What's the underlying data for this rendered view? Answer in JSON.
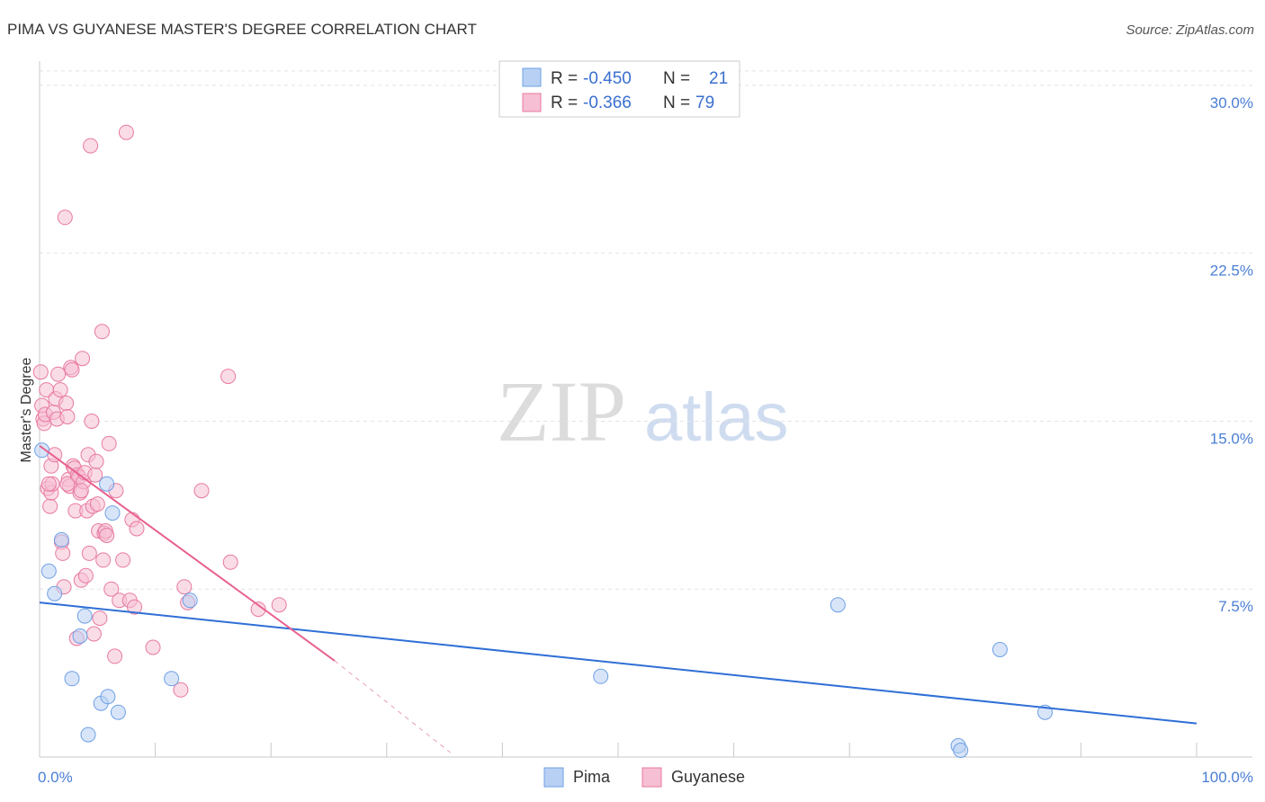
{
  "chart_data": {
    "type": "scatter",
    "title": "PIMA VS GUYANESE MASTER'S DEGREE CORRELATION CHART",
    "source": "Source: ZipAtlas.com",
    "xlabel": "",
    "ylabel": "Master's Degree",
    "xlim": [
      0,
      100
    ],
    "ylim": [
      0,
      31
    ],
    "x_ticks": [
      {
        "value": 0,
        "label": "0.0%"
      },
      {
        "value": 100,
        "label": "100.0%"
      }
    ],
    "y_ticks": [
      {
        "value": 7.5,
        "label": "7.5%"
      },
      {
        "value": 15,
        "label": "15.0%"
      },
      {
        "value": 22.5,
        "label": "22.5%"
      },
      {
        "value": 30,
        "label": "30.0%"
      }
    ],
    "watermark": {
      "part1": "ZIP",
      "part2": "atlas"
    },
    "legend": {
      "r_label": "R =",
      "n_label": "N =",
      "entries": [
        {
          "name": "Pima",
          "r": "-0.450",
          "n": "21"
        },
        {
          "name": "Guyanese",
          "r": "-0.366",
          "n": "79"
        }
      ]
    },
    "series": [
      {
        "name": "Pima",
        "color": "#6fa0e6",
        "fill": "#b8d0f3",
        "trend": {
          "x0": 0,
          "y0": 6.9,
          "x1": 100,
          "y1": 1.5
        },
        "points": [
          [
            0.2,
            13.7
          ],
          [
            0.8,
            8.3
          ],
          [
            1.3,
            7.3
          ],
          [
            1.9,
            9.7
          ],
          [
            2.8,
            3.5
          ],
          [
            3.5,
            5.4
          ],
          [
            3.9,
            6.3
          ],
          [
            4.2,
            1.0
          ],
          [
            5.3,
            2.4
          ],
          [
            5.9,
            2.7
          ],
          [
            6.8,
            2.0
          ],
          [
            6.3,
            10.9
          ],
          [
            11.4,
            3.5
          ],
          [
            13.0,
            7.0
          ],
          [
            48.5,
            3.6
          ],
          [
            69.0,
            6.8
          ],
          [
            83.0,
            4.8
          ],
          [
            86.9,
            2.0
          ],
          [
            79.4,
            0.5
          ],
          [
            79.6,
            0.3
          ],
          [
            5.8,
            12.2
          ]
        ]
      },
      {
        "name": "Guyanese",
        "color": "#e87aa0",
        "fill": "#f6bfd3",
        "trend": {
          "x0": 0,
          "y0": 13.9,
          "x1": 25.5,
          "y1": 4.3
        },
        "trend_dashed": {
          "x0": 25.5,
          "y0": 4.3,
          "x1": 35.5,
          "y1": 0.2
        },
        "points": [
          [
            0.1,
            17.2
          ],
          [
            0.2,
            15.7
          ],
          [
            0.3,
            15.1
          ],
          [
            0.4,
            14.9
          ],
          [
            0.5,
            15.3
          ],
          [
            0.6,
            16.4
          ],
          [
            0.7,
            12.0
          ],
          [
            0.9,
            11.2
          ],
          [
            1.0,
            11.8
          ],
          [
            1.1,
            12.2
          ],
          [
            1.2,
            15.4
          ],
          [
            1.4,
            16.0
          ],
          [
            1.5,
            15.1
          ],
          [
            1.6,
            17.1
          ],
          [
            1.8,
            16.4
          ],
          [
            1.9,
            9.6
          ],
          [
            2.0,
            9.1
          ],
          [
            2.1,
            7.6
          ],
          [
            2.2,
            24.1
          ],
          [
            2.3,
            15.8
          ],
          [
            2.4,
            15.2
          ],
          [
            2.5,
            12.4
          ],
          [
            2.6,
            12.1
          ],
          [
            2.7,
            17.4
          ],
          [
            2.8,
            17.3
          ],
          [
            2.9,
            13.0
          ],
          [
            3.0,
            12.9
          ],
          [
            3.1,
            11.0
          ],
          [
            3.2,
            5.3
          ],
          [
            3.3,
            12.6
          ],
          [
            3.4,
            12.5
          ],
          [
            3.5,
            11.8
          ],
          [
            3.6,
            7.9
          ],
          [
            3.7,
            17.8
          ],
          [
            3.8,
            12.3
          ],
          [
            3.9,
            12.7
          ],
          [
            4.0,
            8.1
          ],
          [
            4.1,
            11.0
          ],
          [
            4.2,
            13.5
          ],
          [
            4.3,
            9.1
          ],
          [
            4.4,
            27.3
          ],
          [
            4.5,
            15.0
          ],
          [
            4.6,
            11.2
          ],
          [
            4.7,
            5.5
          ],
          [
            4.8,
            12.6
          ],
          [
            4.9,
            13.2
          ],
          [
            5.0,
            11.3
          ],
          [
            5.1,
            10.1
          ],
          [
            5.2,
            6.2
          ],
          [
            5.4,
            19.0
          ],
          [
            5.5,
            8.8
          ],
          [
            5.6,
            10.0
          ],
          [
            5.7,
            10.1
          ],
          [
            5.8,
            9.9
          ],
          [
            6.0,
            14.0
          ],
          [
            6.2,
            7.5
          ],
          [
            6.5,
            4.5
          ],
          [
            6.6,
            11.9
          ],
          [
            6.9,
            7.0
          ],
          [
            7.2,
            8.8
          ],
          [
            7.5,
            27.9
          ],
          [
            7.8,
            7.0
          ],
          [
            8.0,
            10.6
          ],
          [
            8.2,
            6.7
          ],
          [
            8.4,
            10.2
          ],
          [
            9.8,
            4.9
          ],
          [
            12.5,
            7.6
          ],
          [
            12.8,
            6.9
          ],
          [
            12.2,
            3.0
          ],
          [
            14.0,
            11.9
          ],
          [
            16.3,
            17.0
          ],
          [
            16.5,
            8.7
          ],
          [
            18.9,
            6.6
          ],
          [
            20.7,
            6.8
          ],
          [
            1.0,
            13.0
          ],
          [
            2.4,
            12.2
          ],
          [
            3.6,
            11.9
          ],
          [
            1.3,
            13.5
          ],
          [
            0.8,
            12.2
          ]
        ]
      }
    ]
  }
}
